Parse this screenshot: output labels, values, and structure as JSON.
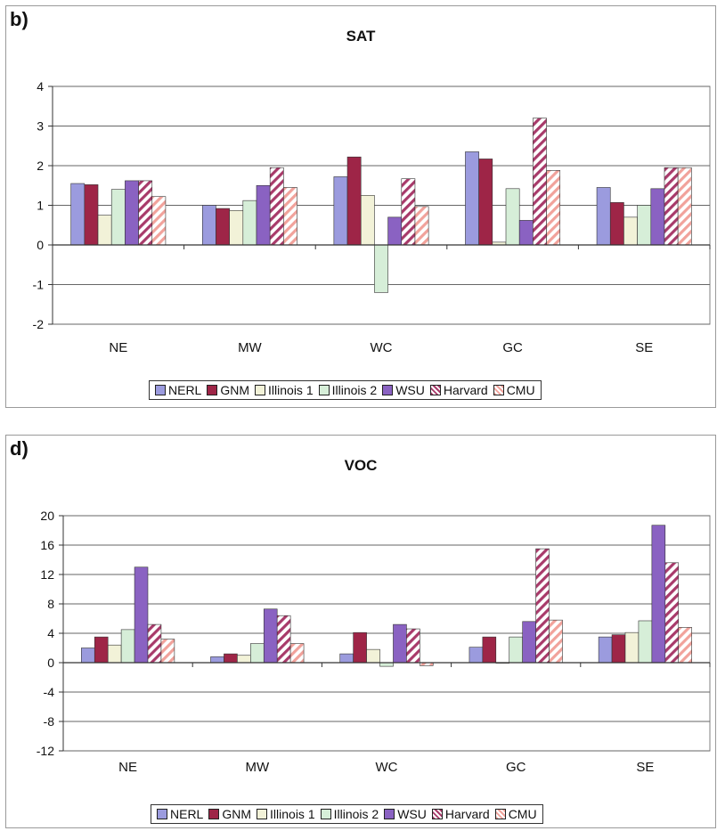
{
  "colors": {
    "NERL": "#9b9bde",
    "GNM": "#9e2547",
    "Illinois 1": "#f2f2d8",
    "Illinois 2": "#d6eed8",
    "WSU": "#8a62c2",
    "Harvard": "#a83a6a",
    "CMU": "#f1a29b"
  },
  "hatch": [
    "Harvard",
    "CMU"
  ],
  "chart_data": [
    {
      "type": "bar",
      "panel_label": "b)",
      "title": "SAT",
      "categories": [
        "NE",
        "MW",
        "WC",
        "GC",
        "SE"
      ],
      "ylim": [
        -2,
        4
      ],
      "yticks": [
        -2,
        -1,
        0,
        1,
        2,
        3,
        4
      ],
      "grid": true,
      "legend": "bottom",
      "series": [
        {
          "name": "NERL",
          "values": [
            1.55,
            1.0,
            1.72,
            2.35,
            1.45
          ]
        },
        {
          "name": "GNM",
          "values": [
            1.52,
            0.92,
            2.22,
            2.17,
            1.07
          ]
        },
        {
          "name": "Illinois 1",
          "values": [
            0.75,
            0.87,
            1.25,
            0.07,
            0.7
          ]
        },
        {
          "name": "Illinois 2",
          "values": [
            1.4,
            1.12,
            -1.2,
            1.42,
            1.0
          ]
        },
        {
          "name": "WSU",
          "values": [
            1.62,
            1.5,
            0.7,
            0.62,
            1.42
          ]
        },
        {
          "name": "Harvard",
          "values": [
            1.62,
            1.95,
            1.67,
            3.2,
            1.95
          ]
        },
        {
          "name": "CMU",
          "values": [
            1.22,
            1.45,
            0.97,
            1.88,
            1.95
          ]
        }
      ]
    },
    {
      "type": "bar",
      "panel_label": "d)",
      "title": "VOC",
      "categories": [
        "NE",
        "MW",
        "WC",
        "GC",
        "SE"
      ],
      "ylim": [
        -12,
        20
      ],
      "yticks": [
        -12,
        -8,
        -4,
        0,
        4,
        8,
        12,
        16,
        20
      ],
      "grid": true,
      "legend": "bottom",
      "series": [
        {
          "name": "NERL",
          "values": [
            2.0,
            0.8,
            1.2,
            2.1,
            3.5
          ]
        },
        {
          "name": "GNM",
          "values": [
            3.5,
            1.2,
            4.1,
            3.5,
            3.8
          ]
        },
        {
          "name": "Illinois 1",
          "values": [
            2.4,
            1.0,
            1.8,
            0.0,
            4.1
          ]
        },
        {
          "name": "Illinois 2",
          "values": [
            4.5,
            2.6,
            -0.5,
            3.5,
            5.7
          ]
        },
        {
          "name": "WSU",
          "values": [
            13.0,
            7.3,
            5.2,
            5.6,
            18.7
          ]
        },
        {
          "name": "Harvard",
          "values": [
            5.2,
            6.4,
            4.6,
            15.5,
            13.6
          ]
        },
        {
          "name": "CMU",
          "values": [
            3.2,
            2.6,
            -0.4,
            5.8,
            4.8
          ]
        }
      ]
    }
  ]
}
